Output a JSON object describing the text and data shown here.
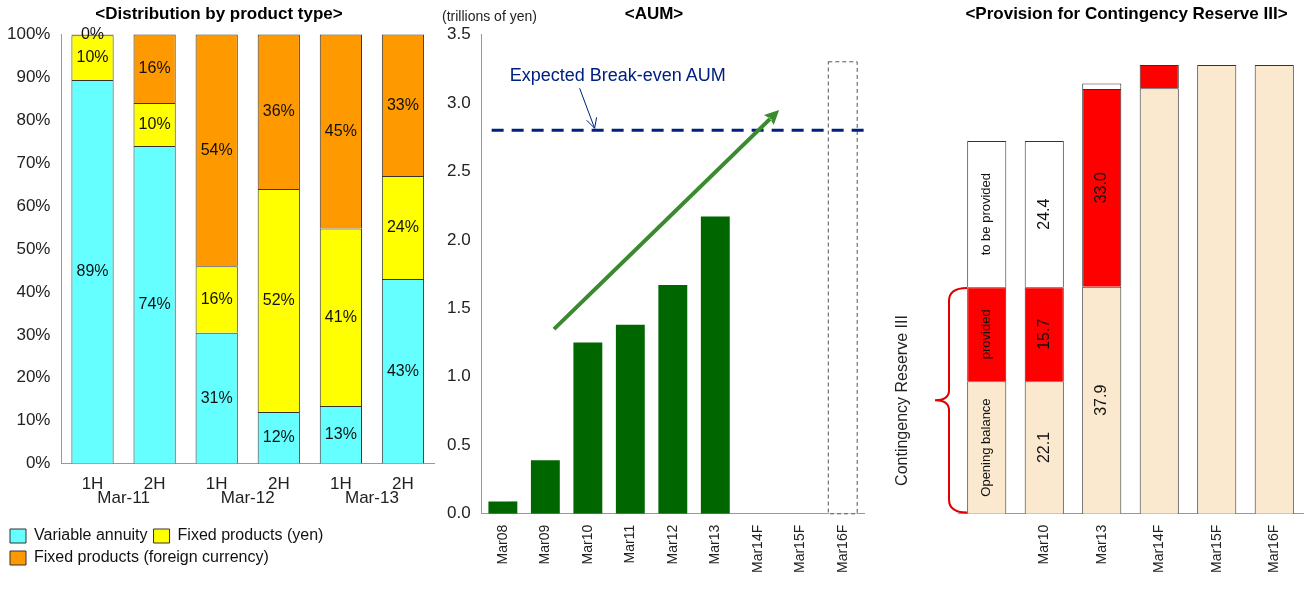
{
  "chart_data": [
    {
      "type": "bar",
      "title": "<Distribution by product type>",
      "categories": [
        "1H",
        "2H",
        "1H",
        "2H",
        "1H",
        "2H"
      ],
      "stacked": true,
      "legend": "bottom",
      "annotations": [
        "Mar-11",
        "Mar-12",
        "Mar-13"
      ],
      "ylim": [
        0,
        100
      ],
      "yticks": [
        {
          "value": 0,
          "label": "0%"
        },
        {
          "value": 10,
          "label": "10%"
        },
        {
          "value": 20,
          "label": "20%"
        },
        {
          "value": 30,
          "label": "30%"
        },
        {
          "value": 40,
          "label": "40%"
        },
        {
          "value": 50,
          "label": "50%"
        },
        {
          "value": 60,
          "label": "60%"
        },
        {
          "value": 70,
          "label": "70%"
        },
        {
          "value": 80,
          "label": "80%"
        },
        {
          "value": 90,
          "label": "90%"
        },
        {
          "value": 100,
          "label": "100%"
        }
      ],
      "series": [
        {
          "name": "Variable annuity",
          "color": "#66ffff",
          "values": [
            89.4,
            74,
            30.5,
            12,
            13.4,
            43
          ],
          "value_labels": [
            "89%",
            "74%",
            "31%",
            "12%",
            "13%",
            "43%"
          ]
        },
        {
          "name": "Fixed products (yen)",
          "color": "#ffff00",
          "values": [
            10.4,
            10,
            15.5,
            52,
            41.4,
            24
          ],
          "value_labels": [
            "10%",
            "10%",
            "16%",
            "52%",
            "41%",
            "24%"
          ]
        },
        {
          "name": "Fixed products (foreign currency)",
          "color": "#ff9900",
          "values": [
            0.2,
            16,
            54,
            36,
            45.2,
            33
          ],
          "value_labels": [
            "0%",
            "16%",
            "54%",
            "36%",
            "45%",
            "33%"
          ]
        }
      ]
    },
    {
      "type": "bar",
      "title": "<AUM>",
      "ylabel": "(trillions of yen)",
      "categories": [
        "Mar08",
        "Mar09",
        "Mar10",
        "Mar11",
        "Mar12",
        "Mar13",
        "Mar14F",
        "Mar15F",
        "Mar16F"
      ],
      "ylim": [
        0,
        3.5
      ],
      "yticks": [
        {
          "value": 0,
          "label": "0.0"
        },
        {
          "value": 0.5,
          "label": "0.5"
        },
        {
          "value": 1,
          "label": "1.0"
        },
        {
          "value": 1.5,
          "label": "1.5"
        },
        {
          "value": 2,
          "label": "2.0"
        },
        {
          "value": 2.5,
          "label": "2.5"
        },
        {
          "value": 3,
          "label": "3.0"
        },
        {
          "value": 3.5,
          "label": "3.5"
        }
      ],
      "series": [
        {
          "color": "#006600",
          "values": [
            0.09,
            0.39,
            1.25,
            1.38,
            1.67,
            2.17,
            null,
            null,
            null
          ]
        },
        {
          "color": "#ffffff",
          "line_style": "dashed",
          "values": [
            null,
            null,
            null,
            null,
            null,
            null,
            null,
            null,
            3.3
          ]
        }
      ],
      "ref_lines": [
        {
          "axis": "y",
          "value": 2.8,
          "label": "Expected Break-even AUM",
          "color": "#002080",
          "line_style": "dashed"
        }
      ]
    },
    {
      "type": "bar",
      "title": "<Provision for Contingency Reserve III>",
      "ylabel": "Contingency Reserve III",
      "categories": [
        null,
        "Mar10",
        "Mar13",
        "Mar14F",
        "Mar15F",
        "Mar16F"
      ],
      "stacked": true,
      "tick_labels": "x",
      "series": [
        {
          "name": "Opening balance",
          "color": "#fbe9cf",
          "values": [
            22.1,
            22.1,
            37.9,
            71.0,
            74.9,
            74.9
          ],
          "value_labels": [
            null,
            "22.1",
            "37.9",
            null,
            null,
            null
          ]
        },
        {
          "name": "provided",
          "color": "#ff0000",
          "values": [
            15.7,
            15.7,
            33.0,
            3.9,
            null,
            null
          ],
          "value_labels": [
            null,
            "15.7",
            "33.0",
            null,
            null,
            null
          ]
        },
        {
          "name": "to be provided",
          "color": "#ffffff",
          "values": [
            24.4,
            24.4,
            0.9,
            null,
            null,
            null
          ],
          "value_labels": [
            null,
            "24.4",
            null,
            null,
            null,
            null
          ]
        }
      ]
    }
  ]
}
